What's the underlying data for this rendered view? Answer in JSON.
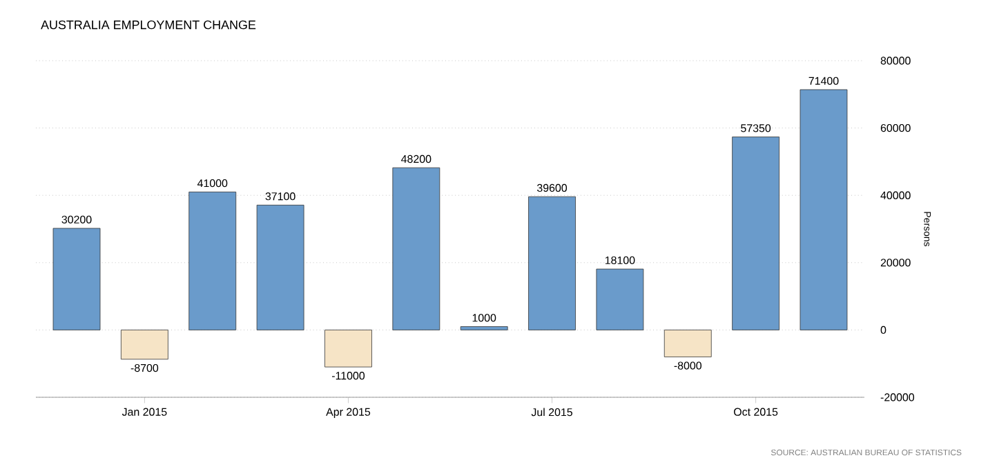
{
  "chart_data": {
    "type": "bar",
    "title": "AUSTRALIA EMPLOYMENT CHANGE",
    "categories": [
      null,
      "Jan 2015",
      null,
      null,
      "Apr 2015",
      null,
      null,
      "Jul 2015",
      null,
      null,
      "Oct 2015",
      null
    ],
    "values": [
      30200,
      -8700,
      41000,
      37100,
      -11000,
      48200,
      1000,
      39600,
      18100,
      -8000,
      57350,
      71400
    ],
    "colors": [
      "#6a9bcb",
      "#f6e4c6",
      "#6a9bcb",
      "#6a9bcb",
      "#f6e4c6",
      "#6a9bcb",
      "#6a9bcb",
      "#6a9bcb",
      "#6a9bcb",
      "#f6e4c6",
      "#6a9bcb",
      "#6a9bcb"
    ],
    "data_labels": true,
    "ylabel": "Persons",
    "ylim": [
      -20000,
      80000
    ],
    "yticks": [
      -20000,
      0,
      20000,
      40000,
      60000,
      80000
    ],
    "grid": "y",
    "annotations": [
      "SOURCE: AUSTRALIAN BUREAU OF STATISTICS"
    ]
  }
}
